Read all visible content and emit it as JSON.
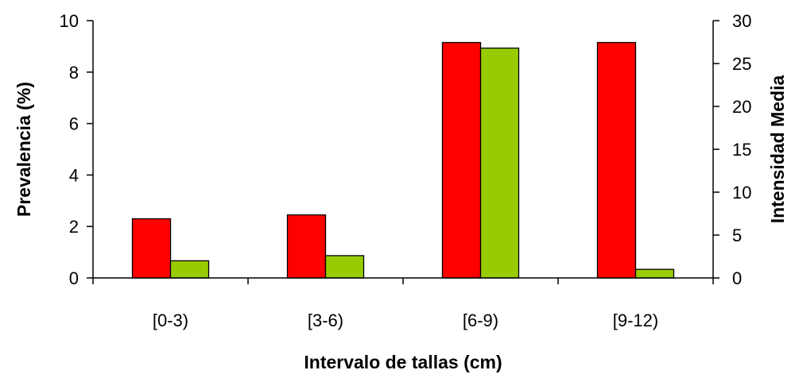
{
  "chart_data": {
    "type": "bar",
    "title": "",
    "categories": [
      "[0-3)",
      "[3-6)",
      "[6-9)",
      "[9-12)"
    ],
    "xlabel": "Intervalo de tallas (cm)",
    "ylabel": "Prevalencia (%)",
    "y2label": "Intensidad Media",
    "ylim": [
      0,
      10
    ],
    "yticks": [
      "0",
      "2",
      "4",
      "6",
      "8",
      "10"
    ],
    "y2lim": [
      0,
      30
    ],
    "y2ticks": [
      "0",
      "5",
      "10",
      "15",
      "20",
      "25",
      "30"
    ],
    "grid": false,
    "legend": "none",
    "series": [
      {
        "axis": "left",
        "color": "#ff0000",
        "values": [
          2.3,
          2.45,
          9.15,
          9.15
        ]
      },
      {
        "axis": "right",
        "color": "#99cc00",
        "values": [
          2.0,
          2.6,
          26.8,
          1.0
        ]
      }
    ]
  }
}
